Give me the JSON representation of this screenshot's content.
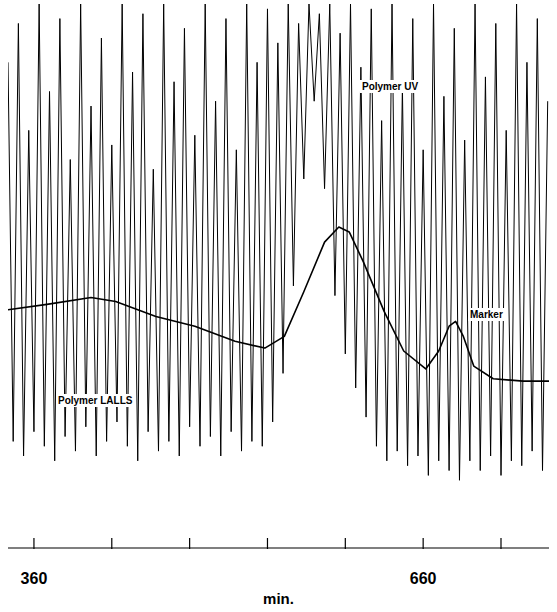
{
  "chart_data": {
    "type": "line",
    "xlabel": "min.",
    "xlim": [
      340,
      757
    ],
    "xticks": [
      360,
      {
        "value": 420,
        "label": null
      },
      {
        "value": 480,
        "label": null
      },
      {
        "value": 540,
        "label": null
      },
      {
        "value": 600,
        "label": null
      },
      660,
      {
        "value": 720,
        "label": null
      }
    ],
    "ylim": [
      0,
      100
    ],
    "tick_labels": "x",
    "grid": false,
    "annotations": [
      "Marker"
    ],
    "series": [
      {
        "name": "Polymer LALLS",
        "color": "#000000",
        "line_style": "solid",
        "x": [
          340,
          344,
          348,
          352,
          356,
          360,
          364,
          368,
          372,
          376,
          380,
          384,
          388,
          392,
          396,
          400,
          404,
          408,
          412,
          416,
          420,
          424,
          428,
          432,
          436,
          440,
          444,
          448,
          452,
          456,
          460,
          464,
          468,
          472,
          476,
          480,
          484,
          488,
          492,
          496,
          500,
          504,
          508,
          512,
          516,
          520,
          524,
          528,
          532,
          536,
          540,
          544,
          548,
          552,
          556,
          560,
          564,
          568,
          572,
          576,
          580,
          584,
          588,
          592,
          596,
          600,
          604,
          608,
          612,
          616,
          620,
          624,
          628,
          632,
          636,
          640,
          644,
          648,
          652,
          656,
          660,
          664,
          668,
          672,
          676,
          680,
          684,
          688,
          692,
          696,
          700,
          704,
          708,
          712,
          716,
          720,
          724,
          728,
          732,
          736,
          740,
          744,
          748,
          752,
          756
        ],
        "values": [
          88,
          10,
          96,
          7,
          74,
          12,
          100,
          9,
          82,
          6,
          97,
          11,
          68,
          8,
          100,
          13,
          79,
          7,
          93,
          10,
          71,
          14,
          100,
          9,
          86,
          6,
          98,
          12,
          66,
          8,
          100,
          10,
          84,
          7,
          95,
          13,
          73,
          9,
          100,
          11,
          80,
          7,
          97,
          12,
          70,
          8,
          100,
          10,
          88,
          9,
          99,
          14,
          92,
          24,
          100,
          42,
          96,
          64,
          100,
          80,
          98,
          62,
          100,
          40,
          94,
          28,
          100,
          21,
          87,
          15,
          99,
          9,
          76,
          6,
          100,
          8,
          83,
          5,
          97,
          7,
          70,
          3,
          100,
          6,
          81,
          4,
          95,
          2,
          72,
          6,
          100,
          4,
          85,
          7,
          96,
          3,
          74,
          6,
          100,
          5,
          88,
          8,
          97,
          4,
          80
        ]
      },
      {
        "name": "Polymer UV",
        "color": "#000000",
        "line_style": "solid",
        "x": [
          340,
          370,
          404,
          423,
          454,
          484,
          515,
          538,
          553,
          568,
          584,
          595,
          603,
          614,
          630,
          645,
          662,
          672,
          680,
          685,
          691,
          699,
          714,
          737,
          757
        ],
        "values": [
          37.1,
          38.2,
          39.6,
          38.8,
          35.7,
          33.7,
          30.6,
          29.2,
          31.6,
          40.8,
          51.0,
          54.1,
          53.1,
          46.9,
          36.7,
          28.6,
          24.9,
          28.6,
          33.7,
          34.7,
          31.6,
          25.5,
          22.9,
          22.4,
          22.4
        ]
      }
    ]
  }
}
